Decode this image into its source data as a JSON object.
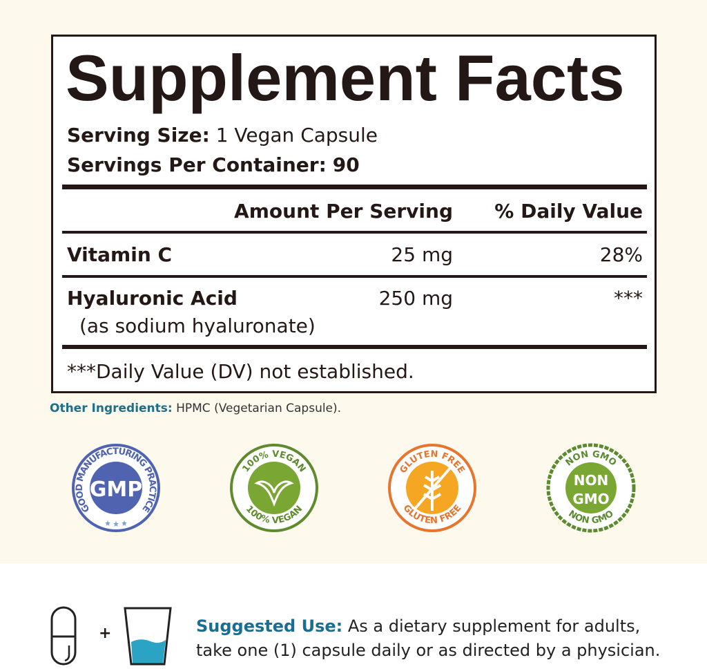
{
  "label": {
    "title": "Supplement Facts",
    "serving_size_label": "Serving Size:",
    "serving_size_value": "1 Vegan Capsule",
    "servings_per_container_label": "Servings Per Container:",
    "servings_per_container_value": "90",
    "header_amount": "Amount Per Serving",
    "header_dv": "% Daily Value",
    "rows": [
      {
        "name": "Vitamin C",
        "amount": "25 mg",
        "dv": "28%"
      },
      {
        "name": "Hyaluronic Acid",
        "sub": "(as sodium hyaluronate)",
        "amount": "250 mg",
        "dv": "***"
      }
    ],
    "footnote": "***Daily Value (DV) not established."
  },
  "other_ingredients": {
    "label": "Other Ingredients:",
    "value": "HPMC (Vegetarian Capsule)."
  },
  "badges": [
    {
      "name": "gmp",
      "center": "GMP",
      "ring": "GOOD MANUFACTURING PRACTICE",
      "color": "#4f63b0"
    },
    {
      "name": "vegan",
      "top": "100% VEGAN",
      "bottom": "100% VEGAN",
      "color": "#5f8a2e"
    },
    {
      "name": "gluten-free",
      "top": "GLUTEN FREE",
      "bottom": "GLUTEN FREE",
      "color": "#e6762f"
    },
    {
      "name": "non-gmo",
      "center1": "NON",
      "center2": "GMO",
      "top": "NON GMO",
      "bottom": "NON GMO",
      "color": "#5b8a2f"
    }
  ],
  "suggested_use": {
    "label": "Suggested Use:",
    "text": "As a dietary supplement for adults, take one (1) capsule daily or as directed by a physician.",
    "plus": "+"
  },
  "colors": {
    "accent": "#1a6e94",
    "water": "#2aa3c4",
    "background": "#fdf9ed"
  }
}
